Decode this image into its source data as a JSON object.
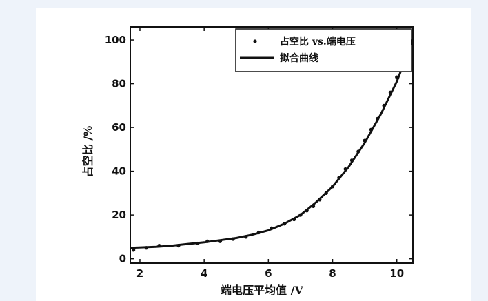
{
  "chart_data": {
    "type": "scatter",
    "xlabel": "端电压平均值 /V",
    "ylabel": "占空比 /%",
    "xlim": [
      1.7,
      10.5
    ],
    "ylim": [
      -2,
      106
    ],
    "x_ticks": [
      2,
      4,
      6,
      8,
      10
    ],
    "y_ticks": [
      0,
      20,
      40,
      60,
      80,
      100
    ],
    "grid": false,
    "legend_position": "top-right",
    "series": [
      {
        "name": "占空比 vs.端电压",
        "kind": "markers",
        "x": [
          1.8,
          2.2,
          2.6,
          3.2,
          3.8,
          4.1,
          4.5,
          4.9,
          5.3,
          5.7,
          6.1,
          6.5,
          6.8,
          7.0,
          7.2,
          7.4,
          7.6,
          7.8,
          8.0,
          8.2,
          8.4,
          8.6,
          8.8,
          9.0,
          9.2,
          9.4,
          9.6,
          9.8,
          10.0,
          10.1,
          10.2,
          10.3,
          10.4
        ],
        "y": [
          4,
          5,
          6,
          6,
          7,
          8,
          8,
          9,
          10,
          12,
          14,
          16,
          18,
          20,
          22,
          24,
          27,
          30,
          33,
          37,
          41,
          45,
          49,
          54,
          59,
          64,
          70,
          76,
          83,
          87,
          91,
          95,
          99
        ]
      },
      {
        "name": "拟合曲线",
        "kind": "line",
        "x": [
          1.7,
          2.5,
          3.0,
          3.5,
          4.0,
          4.5,
          5.0,
          5.5,
          6.0,
          6.5,
          7.0,
          7.5,
          8.0,
          8.5,
          9.0,
          9.5,
          10.0,
          10.5
        ],
        "y": [
          5,
          5.5,
          6,
          6.8,
          7.5,
          8.5,
          9.5,
          11,
          13,
          16,
          20,
          26,
          33,
          42,
          53,
          66,
          81,
          100
        ]
      }
    ]
  }
}
